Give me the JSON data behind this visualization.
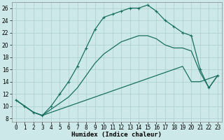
{
  "xlabel": "Humidex (Indice chaleur)",
  "ylabel": "",
  "bg_color": "#cce8e8",
  "line_color": "#1a7060",
  "grid_color": "#aacfcf",
  "xlim": [
    -0.5,
    23.5
  ],
  "ylim": [
    7.5,
    27
  ],
  "xticks": [
    0,
    1,
    2,
    3,
    4,
    5,
    6,
    7,
    8,
    9,
    10,
    11,
    12,
    13,
    14,
    15,
    16,
    17,
    18,
    19,
    20,
    21,
    22,
    23
  ],
  "yticks": [
    8,
    10,
    12,
    14,
    16,
    18,
    20,
    22,
    24,
    26
  ],
  "series": [
    {
      "x": [
        0,
        1,
        2,
        3,
        4,
        5,
        6,
        7,
        8,
        9,
        10,
        11,
        12,
        13,
        14,
        15,
        16,
        17,
        18,
        19,
        20,
        21,
        22,
        23
      ],
      "y": [
        11,
        10,
        9,
        8.5,
        9,
        9.5,
        10,
        10.5,
        11,
        11.5,
        12,
        12.5,
        13,
        13.5,
        14,
        14.5,
        15,
        15.5,
        16,
        16.5,
        14,
        14,
        14.5,
        15
      ],
      "marker": false
    },
    {
      "x": [
        0,
        1,
        2,
        3,
        4,
        5,
        6,
        7,
        8,
        9,
        10,
        11,
        12,
        13,
        14,
        15,
        16,
        17,
        18,
        19,
        20,
        21,
        22,
        23
      ],
      "y": [
        11,
        10,
        9,
        8.5,
        9.5,
        10.5,
        11.5,
        13,
        15,
        17,
        18.5,
        19.5,
        20.5,
        21,
        21.5,
        21.5,
        21,
        20,
        19.5,
        19.5,
        19,
        15.5,
        13,
        15
      ],
      "marker": false
    },
    {
      "x": [
        0,
        1,
        2,
        3,
        4,
        5,
        6,
        7,
        8,
        9,
        10,
        11,
        12,
        13,
        14,
        15,
        16,
        17,
        18,
        19,
        20,
        21,
        22,
        23
      ],
      "y": [
        11,
        10,
        9,
        8.5,
        10,
        12,
        14,
        16.5,
        19.5,
        22.5,
        24.5,
        25,
        25.5,
        26,
        26,
        26.5,
        25.5,
        24,
        23,
        22,
        21.5,
        16,
        13,
        15
      ],
      "marker": true
    }
  ],
  "markersize": 2.5,
  "linewidth": 0.9,
  "label_fontsize": 6.5,
  "tick_fontsize": 5.5
}
